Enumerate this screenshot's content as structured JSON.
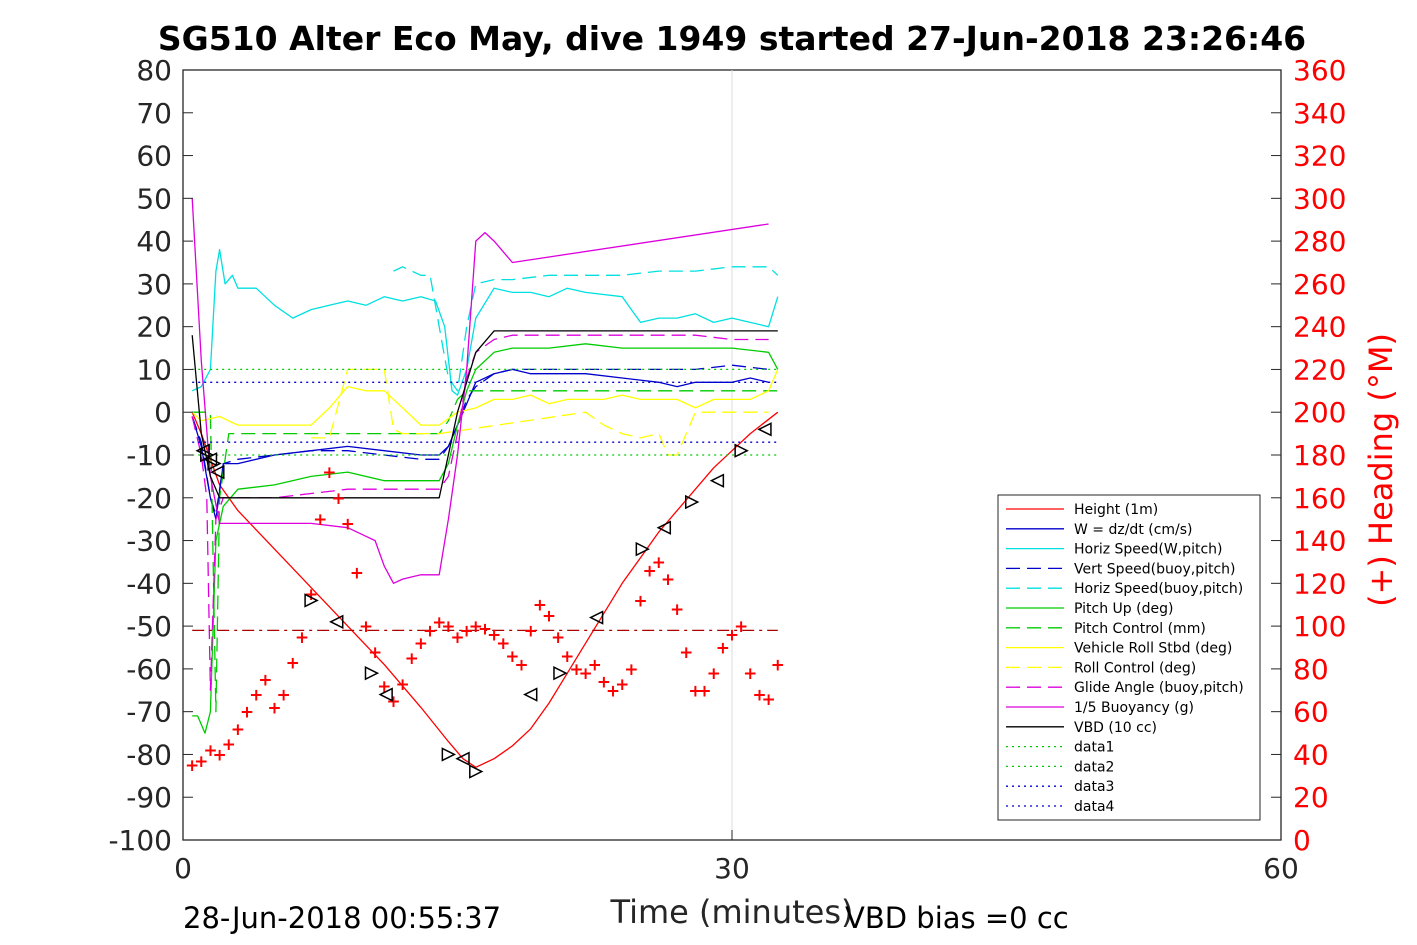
{
  "chart_data": {
    "type": "line",
    "title": "SG510 Alter Eco May, dive 1949 started 27-Jun-2018 23:26:46",
    "xlabel": "Time (minutes)",
    "ylabel_right": "(+) Heading (°M)",
    "xlim": [
      0,
      60
    ],
    "ylim": [
      -100,
      80
    ],
    "ylim_right": [
      0,
      360
    ],
    "x_ticks": [
      "0",
      "30",
      "60"
    ],
    "y_ticks": [
      "80",
      "70",
      "60",
      "50",
      "40",
      "30",
      "20",
      "10",
      "0",
      "-10",
      "-20",
      "-30",
      "-40",
      "-50",
      "-60",
      "-70",
      "-80",
      "-90",
      "-100"
    ],
    "y_ticks_right": [
      "360",
      "340",
      "320",
      "300",
      "280",
      "260",
      "240",
      "220",
      "200",
      "180",
      "160",
      "140",
      "120",
      "100",
      "80",
      "60",
      "40",
      "20",
      "0"
    ],
    "grid_x": [
      30
    ],
    "footer_left": "28-Jun-2018 00:55:37",
    "footer_right": "VBD bias =0 cc",
    "legend_position": "lower-right",
    "legend": [
      {
        "label": "Height (1m)",
        "color": "#ff0000",
        "style": "solid"
      },
      {
        "label": "W = dz/dt (cm/s)",
        "color": "#0000cc",
        "style": "solid"
      },
      {
        "label": "Horiz Speed(W,pitch)",
        "color": "#00e0e0",
        "style": "solid"
      },
      {
        "label": "Vert Speed(buoy,pitch)",
        "color": "#0000cc",
        "style": "dashed"
      },
      {
        "label": "Horiz Speed(buoy,pitch)",
        "color": "#00e0e0",
        "style": "dashed"
      },
      {
        "label": "Pitch Up (deg)",
        "color": "#00cc00",
        "style": "solid"
      },
      {
        "label": "Pitch Control (mm)",
        "color": "#00cc00",
        "style": "dashed"
      },
      {
        "label": "Vehicle Roll Stbd (deg)",
        "color": "#ffff00",
        "style": "solid"
      },
      {
        "label": "Roll Control (deg)",
        "color": "#ffff00",
        "style": "dashed"
      },
      {
        "label": "Glide Angle (buoy,pitch)",
        "color": "#dd00dd",
        "style": "dashed"
      },
      {
        "label": "1/5 Buoyancy (g)",
        "color": "#dd00dd",
        "style": "solid"
      },
      {
        "label": "VBD (10 cc)",
        "color": "#000000",
        "style": "solid"
      },
      {
        "label": "data1",
        "color": "#00cc00",
        "style": "dotted"
      },
      {
        "label": "data2",
        "color": "#00cc00",
        "style": "dotted"
      },
      {
        "label": "data3",
        "color": "#0000cc",
        "style": "dotted"
      },
      {
        "label": "data4",
        "color": "#0000cc",
        "style": "dotted"
      }
    ],
    "series": [
      {
        "name": "Height (1m)",
        "color": "#ff0000",
        "style": "solid",
        "x": [
          0.5,
          1,
          2,
          3,
          5,
          7,
          9,
          11,
          13,
          14.5,
          15.3,
          16,
          17,
          18,
          19,
          20,
          21,
          22,
          23,
          24,
          25,
          26,
          27,
          28,
          29,
          30,
          31,
          32.5
        ],
        "y": [
          0,
          -5,
          -17,
          -23,
          -32,
          -41,
          -50,
          -59,
          -69,
          -77,
          -81,
          -83,
          -81,
          -78,
          -74,
          -68,
          -61,
          -54,
          -47,
          -40,
          -34,
          -28,
          -23,
          -18,
          -13,
          -9,
          -5,
          0
        ]
      },
      {
        "name": "W = dz/dt (cm/s)",
        "color": "#0000cc",
        "style": "solid",
        "x": [
          0.5,
          1,
          1.5,
          1.8,
          2.2,
          3,
          5,
          7,
          9,
          11,
          13,
          14,
          14.5,
          15,
          15.5,
          16,
          17,
          18,
          19,
          20,
          22,
          24,
          26,
          27,
          28,
          30,
          31,
          32
        ],
        "y": [
          -1,
          -8,
          -20,
          -25,
          -12,
          -12,
          -10,
          -9,
          -8,
          -9,
          -10,
          -10,
          -8,
          -3,
          2,
          7,
          9,
          10,
          9,
          9,
          9,
          8,
          7,
          6,
          7,
          7,
          8,
          7
        ]
      },
      {
        "name": "Horiz Speed(W,pitch)",
        "color": "#00e0e0",
        "style": "solid",
        "x": [
          0.5,
          1,
          1.5,
          1.8,
          2,
          2.3,
          2.7,
          3,
          4,
          5,
          6,
          7,
          8,
          9,
          10,
          11,
          12,
          13,
          13.8,
          14.3,
          14.7,
          15,
          15.5,
          16,
          17,
          18,
          19,
          20,
          21,
          22,
          24,
          25,
          26,
          27,
          28,
          29,
          30,
          31,
          32,
          32.5
        ],
        "y": [
          5,
          6,
          10,
          33,
          38,
          30,
          32,
          29,
          29,
          25,
          22,
          24,
          25,
          26,
          25,
          27,
          26,
          27,
          26,
          20,
          5,
          4,
          10,
          22,
          29,
          28,
          28,
          27,
          29,
          28,
          27,
          21,
          22,
          22,
          23,
          21,
          22,
          21,
          20,
          27
        ]
      },
      {
        "name": "Vert Speed(buoy,pitch)",
        "color": "#0000cc",
        "style": "dashed",
        "x": [
          0.5,
          1,
          1.5,
          1.8,
          2.2,
          3,
          5,
          7,
          9,
          11,
          13,
          14,
          14.5,
          15,
          15.5,
          16,
          17,
          18,
          20,
          22,
          24,
          26,
          28,
          30,
          32
        ],
        "y": [
          -1,
          -7,
          -20,
          -24,
          -12,
          -11,
          -10,
          -9,
          -9,
          -10,
          -11,
          -11,
          -8,
          -3,
          3,
          6,
          9,
          10,
          10,
          10,
          10,
          10,
          10,
          11,
          10
        ]
      },
      {
        "name": "Horiz Speed(buoy,pitch)",
        "color": "#00e0e0",
        "style": "dashed",
        "x": [
          11.5,
          12,
          13,
          13.5,
          14,
          14.5,
          15,
          15.5,
          16,
          17,
          18,
          20,
          22,
          24,
          26,
          28,
          30,
          32,
          32.5
        ],
        "y": [
          33,
          34,
          32,
          32,
          20,
          8,
          5,
          20,
          30,
          31,
          31,
          32,
          32,
          32,
          33,
          33,
          34,
          34,
          32
        ]
      },
      {
        "name": "Pitch Up (deg)",
        "color": "#00cc00",
        "style": "solid",
        "x": [
          0.5,
          0.8,
          1.2,
          1.5,
          1.8,
          2.2,
          3,
          5,
          7,
          9,
          11,
          13,
          14,
          14.5,
          15,
          15.5,
          16,
          17,
          18,
          20,
          22,
          24,
          26,
          28,
          30,
          32,
          32.5
        ],
        "y": [
          -71,
          -71,
          -75,
          -70,
          -30,
          -22,
          -18,
          -17,
          -15,
          -14,
          -16,
          -16,
          -16,
          -12,
          -3,
          5,
          10,
          14,
          15,
          15,
          16,
          15,
          15,
          15,
          15,
          14,
          10
        ]
      },
      {
        "name": "Pitch Control (mm)",
        "color": "#00cc00",
        "style": "dashed",
        "x": [
          0.5,
          1.5,
          1.8,
          2,
          2.5,
          14,
          14.5,
          15,
          15.5,
          32.5
        ],
        "y": [
          0,
          0,
          -70,
          -20,
          -5,
          -5,
          -2,
          3,
          5,
          5
        ]
      },
      {
        "name": "Vehicle Roll Stbd (deg)",
        "color": "#ffff00",
        "style": "solid",
        "x": [
          0.5,
          1,
          2,
          3,
          5,
          6,
          7,
          8,
          9,
          10,
          11,
          12,
          13,
          14,
          15,
          16,
          17,
          18,
          19,
          20,
          21,
          22,
          23,
          24,
          25,
          26,
          27,
          28,
          29,
          30,
          31,
          32,
          32.5
        ],
        "y": [
          0,
          -2,
          -1,
          -3,
          -3,
          -3,
          -3,
          1,
          6,
          5,
          5,
          1,
          -3,
          -3,
          0,
          1,
          3,
          3,
          4,
          2,
          3,
          3,
          3,
          4,
          3,
          3,
          3,
          1,
          3,
          3,
          3,
          5,
          10
        ]
      },
      {
        "name": "Roll Control (deg)",
        "color": "#ffff00",
        "style": "dashed",
        "x": [
          7,
          8,
          9,
          10,
          11,
          11.5,
          12,
          14,
          22,
          23,
          24,
          25,
          26,
          26.5,
          27,
          28,
          29,
          30,
          32
        ],
        "y": [
          -6,
          -6,
          10,
          10,
          10,
          -4,
          -5,
          -5,
          0,
          -3,
          -5,
          -6,
          -5,
          -10,
          -10,
          0,
          0,
          0,
          0
        ]
      },
      {
        "name": "Glide Angle (buoy,pitch)",
        "color": "#dd00dd",
        "style": "dashed",
        "x": [
          0.5,
          1,
          1.3,
          1.5,
          1.8,
          2.2,
          3,
          5,
          7,
          9,
          11,
          12,
          13,
          14,
          14.5,
          15,
          15.5,
          16,
          17,
          18,
          20,
          22,
          24,
          26,
          28,
          30,
          32
        ],
        "y": [
          -1,
          -10,
          -20,
          -65,
          -25,
          -20,
          -20,
          -20,
          -19,
          -18,
          -18,
          -18,
          -18,
          -18,
          -15,
          -5,
          8,
          14,
          17,
          18,
          18,
          18,
          18,
          18,
          18,
          17,
          17
        ]
      },
      {
        "name": "1/5 Buoyancy (g)",
        "color": "#dd00dd",
        "style": "solid",
        "x": [
          0.5,
          1,
          1.5,
          2,
          2.5,
          5,
          7,
          9,
          10,
          10.5,
          11,
          11.5,
          12,
          13,
          14,
          14.5,
          15,
          15.5,
          16,
          16.5,
          17,
          18,
          32
        ],
        "y": [
          50,
          12,
          -15,
          -26,
          -26,
          -26,
          -26,
          -27,
          -29,
          -30,
          -36,
          -40,
          -39,
          -38,
          -38,
          -25,
          -10,
          10,
          40,
          42,
          40,
          35,
          44
        ]
      },
      {
        "name": "VBD (10 cc)",
        "color": "#000000",
        "style": "solid",
        "x": [
          0.5,
          1,
          1.5,
          2,
          14,
          15,
          16,
          17,
          32.5
        ],
        "y": [
          18,
          -5,
          -15,
          -20,
          -20,
          0,
          14,
          19,
          19
        ]
      },
      {
        "name": "data1",
        "color": "#00cc00",
        "style": "dotted",
        "x": [
          0.5,
          32.5
        ],
        "y": [
          10,
          10
        ]
      },
      {
        "name": "data2",
        "color": "#00cc00",
        "style": "dotted",
        "x": [
          0.5,
          32.5
        ],
        "y": [
          -10,
          -10
        ]
      },
      {
        "name": "data3",
        "color": "#0000cc",
        "style": "dotted",
        "x": [
          0.5,
          32.5
        ],
        "y": [
          7,
          7
        ]
      },
      {
        "name": "data4",
        "color": "#0000cc",
        "style": "dotted",
        "x": [
          0.5,
          32.5
        ],
        "y": [
          -7,
          -7
        ]
      },
      {
        "name": "",
        "color": "#aa0000",
        "style": "dashdot",
        "x": [
          0.5,
          32.5
        ],
        "y": [
          -51,
          -51
        ]
      }
    ],
    "heading_points": {
      "color": "#ff0000",
      "marker": "+",
      "x": [
        0.5,
        1,
        1.5,
        2,
        2.5,
        3,
        3.5,
        4,
        4.5,
        5,
        5.5,
        6,
        6.5,
        7,
        7.5,
        8,
        8.5,
        9,
        9.5,
        10,
        10.5,
        11,
        11.5,
        12,
        12.5,
        13,
        13.5,
        14,
        14.5,
        15,
        15.5,
        16,
        16.5,
        17,
        17.5,
        18,
        18.5,
        19,
        19.5,
        20,
        20.5,
        21,
        21.5,
        22,
        22.5,
        23,
        23.5,
        24,
        24.5,
        25,
        25.5,
        26,
        26.5,
        27,
        27.5,
        28,
        28.5,
        29,
        29.5,
        30,
        30.5,
        31,
        31.5,
        32,
        32.5
      ],
      "y": [
        35,
        37,
        42,
        40,
        45,
        52,
        60,
        68,
        75,
        62,
        68,
        83,
        95,
        115,
        150,
        172,
        160,
        148,
        125,
        100,
        88,
        72,
        65,
        73,
        85,
        92,
        98,
        102,
        100,
        95,
        98,
        100,
        99,
        96,
        92,
        86,
        82,
        98,
        110,
        105,
        95,
        86,
        80,
        78,
        82,
        74,
        70,
        73,
        80,
        112,
        126,
        130,
        122,
        108,
        88,
        70,
        70,
        78,
        90,
        96,
        100,
        78,
        68,
        66,
        82
      ]
    },
    "markers": {
      "color": "#000000",
      "x": [
        1.1,
        1.3,
        1.5,
        1.7,
        1.9,
        7,
        8.4,
        10.3,
        11.1,
        14.5,
        15.3,
        16,
        19,
        20.6,
        22.6,
        25.1,
        26.3,
        27.8,
        29.2,
        30.5,
        31.8
      ],
      "y": [
        -9,
        -10,
        -11,
        -12,
        -14,
        -44,
        -49,
        -61,
        -66,
        -80,
        -81,
        -84,
        -66,
        -61,
        -48,
        -32,
        -27,
        -21,
        -16,
        -9,
        -4
      ]
    }
  }
}
